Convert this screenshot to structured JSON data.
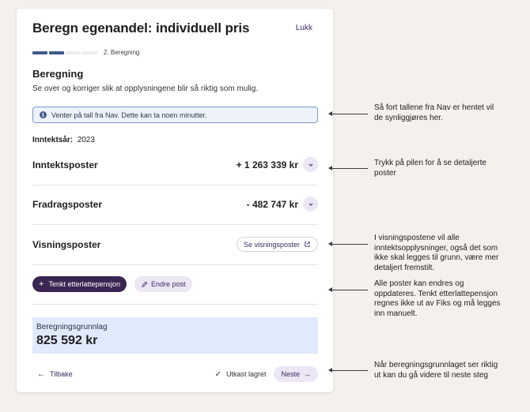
{
  "dialog": {
    "title": "Beregn egenandel: individuell pris",
    "close_label": "Lukk",
    "step_label": "2. Beregning",
    "progress": {
      "steps_total": 4,
      "steps_done": 2
    },
    "section_title": "Beregning",
    "section_subtitle": "Se over og korriger slik at opplysningene blir så riktig som mulig.",
    "alert_text": "Venter på tall fra Nav. Dette kan ta noen minutter.",
    "income_year_label": "Inntektsår:",
    "income_year_value": "2023",
    "income_posts": {
      "label": "Inntektsposter",
      "amount": "+ 1 263 339 kr"
    },
    "deduction_posts": {
      "label": "Fradragsposter",
      "amount": "- 482 747 kr"
    },
    "view_posts": {
      "label": "Visningsposter",
      "button_label": "Se visningsposter"
    },
    "add_pension_label": "Tenkt etterlattepensjon",
    "edit_post_label": "Endre post",
    "basis_label": "Beregningsgrunnlag",
    "basis_value": "825 592 kr",
    "back_label": "Tilbake",
    "draft_saved_label": "Utkast lagret",
    "next_label": "Neste"
  },
  "annotations": [
    "Så fort tallene fra Nav er hentet vil de synliggjøres her.",
    "Trykk på pilen for å se detaljerte poster",
    "I visningspostene vil alle inntektsopplysninger, også det som ikke skal legges til grunn, være mer detaljert fremstilt.",
    "Alle poster kan endres og oppdateres. Tenkt etterlattepensjon regnes ikke ut av Fiks og må legges inn manuelt.",
    "Når beregningsgrunnlaget ser riktig ut kan du gå videre til neste steg"
  ],
  "colors": {
    "primary_dark": "#3a2553",
    "accent_light": "#ece6f5",
    "progress": "#3e5b8d",
    "info_border": "#7c97c9",
    "basis_background": "#e1eafb"
  }
}
